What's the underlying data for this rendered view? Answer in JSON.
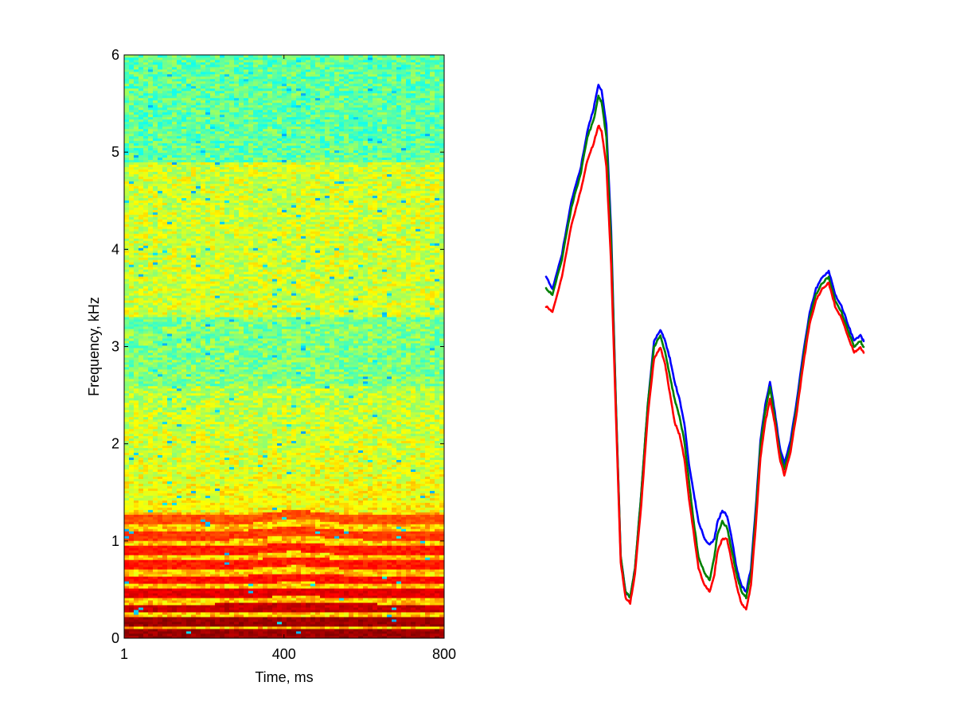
{
  "chart_data": [
    {
      "type": "heatmap",
      "title": "",
      "xlabel": "Time, ms",
      "ylabel": "Frequency, kHz",
      "xlim": [
        1,
        800
      ],
      "ylim": [
        0,
        6
      ],
      "xticks": [
        1,
        400,
        800
      ],
      "yticks": [
        0,
        1,
        2,
        3,
        4,
        5,
        6
      ],
      "xtick_labels": [
        "1",
        "400",
        "800"
      ],
      "ytick_labels": [
        "0",
        "1",
        "2",
        "3",
        "4",
        "5",
        "6"
      ],
      "colormap": "jet",
      "grid": false,
      "harmonics_khz": [
        0.05,
        0.17,
        0.31,
        0.46,
        0.6,
        0.76,
        0.9,
        1.06,
        1.22,
        1.37,
        1.52,
        1.67,
        1.82,
        1.98,
        2.14,
        2.4,
        3.1,
        3.3,
        3.45,
        3.6,
        3.8,
        4.2,
        4.85
      ],
      "harmonic_strengths": [
        0.97,
        0.97,
        0.93,
        0.9,
        0.86,
        0.85,
        0.85,
        0.82,
        0.8,
        0.6,
        0.58,
        0.52,
        0.45,
        0.42,
        0.4,
        0.35,
        0.3,
        0.32,
        0.3,
        0.38,
        0.3,
        0.25,
        0.28
      ],
      "pitch_bump": {
        "center_ms": 430,
        "width_ms": 90,
        "relative_rise": 0.045
      },
      "colors": {
        "low": "#00007f",
        "high": "#7f0000"
      }
    },
    {
      "type": "line",
      "title": "",
      "xlabel": "",
      "ylabel": "",
      "axes_visible": false,
      "xlim": [
        0,
        100
      ],
      "ylim": [
        0,
        100
      ],
      "x": [
        0,
        2,
        5,
        8,
        11,
        13,
        15,
        16.5,
        17.5,
        19,
        20.5,
        22,
        23.5,
        25,
        26.5,
        28,
        30,
        32,
        34,
        36,
        37.5,
        39,
        40.5,
        42,
        43.5,
        45,
        46.5,
        48,
        50,
        51.5,
        53,
        54,
        55.5,
        57,
        58.5,
        60,
        61.5,
        63,
        64.5,
        66,
        67.5,
        69,
        70.5,
        72,
        73.5,
        75,
        77,
        79,
        81,
        83,
        85,
        87,
        89,
        91,
        93,
        95,
        97,
        99,
        100
      ],
      "series": [
        {
          "color": "#0000ff",
          "values": [
            62,
            60,
            66,
            75,
            81,
            87,
            91,
            95,
            94,
            88,
            70,
            40,
            14,
            8,
            7,
            12,
            25,
            40,
            51,
            53,
            51,
            48,
            44,
            41,
            37,
            30,
            25,
            20,
            17,
            16,
            17,
            20,
            22,
            21,
            17,
            12,
            9,
            8,
            12,
            22,
            34,
            40,
            44,
            39,
            33,
            30,
            34,
            41,
            49,
            56,
            60,
            62,
            63,
            59,
            57,
            54,
            51,
            52,
            51
          ]
        },
        {
          "color": "#008000",
          "values": [
            60,
            59,
            65,
            74,
            80,
            86,
            89,
            93,
            92,
            86,
            68,
            40,
            14,
            8,
            7,
            12,
            25,
            40,
            50,
            52,
            49,
            45,
            41,
            38,
            34,
            27,
            20,
            14,
            11,
            10,
            14,
            18,
            20,
            19,
            15,
            11,
            8,
            7,
            11,
            21,
            33,
            39,
            43,
            38,
            32,
            29,
            33,
            40,
            48,
            55,
            59,
            61,
            62,
            58,
            56,
            53,
            50,
            51,
            50
          ]
        },
        {
          "color": "#ff0000",
          "values": [
            57,
            56,
            62,
            71,
            77,
            82,
            85,
            88,
            87,
            81,
            64,
            38,
            13,
            7,
            6,
            11,
            23,
            38,
            48,
            50,
            47,
            42,
            37,
            35,
            31,
            24,
            18,
            12,
            9,
            8,
            11,
            15,
            17,
            17,
            13,
            9,
            6,
            5,
            9,
            19,
            31,
            37,
            41,
            37,
            31,
            28,
            32,
            39,
            47,
            54,
            58,
            60,
            61,
            57,
            55,
            52,
            49,
            50,
            49
          ]
        }
      ]
    }
  ]
}
